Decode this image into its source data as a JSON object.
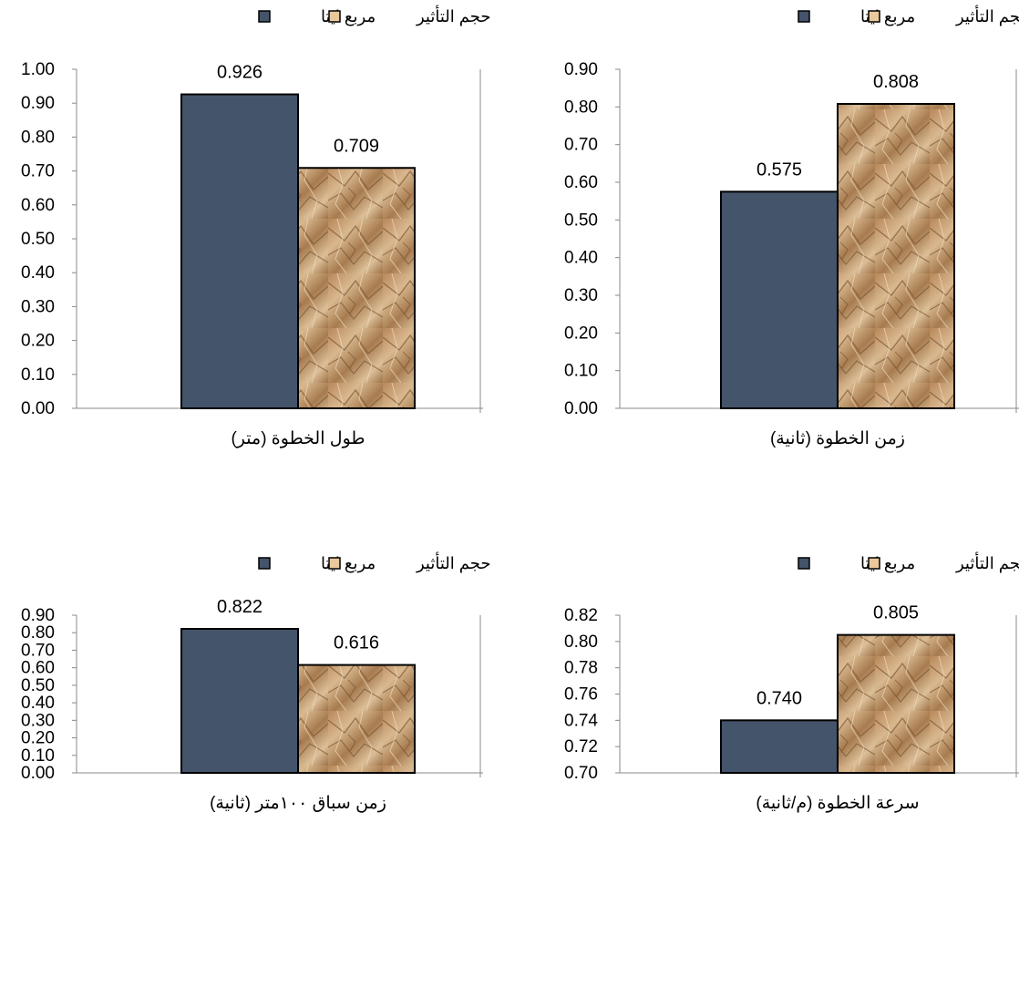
{
  "chart_data": [
    {
      "type": "bar",
      "categories": [
        "طول الخطوة (متر)"
      ],
      "series": [
        {
          "name": "مربع ايتا",
          "values": [
            0.926
          ],
          "color": "#44546a"
        },
        {
          "name": "حجم التأثير",
          "values": [
            0.709
          ],
          "color": "#c9a273"
        }
      ],
      "data_labels": [
        "0.926",
        "0.709"
      ],
      "ylim": [
        0,
        1.0
      ],
      "yticks": [
        "0.00",
        "0.10",
        "0.20",
        "0.30",
        "0.40",
        "0.50",
        "0.60",
        "0.70",
        "0.80",
        "0.90",
        "1.00"
      ],
      "legend_position": "top",
      "grid": false
    },
    {
      "type": "bar",
      "categories": [
        "زمن الخطوة (ثانية)"
      ],
      "series": [
        {
          "name": "مربع ايتا",
          "values": [
            0.575
          ],
          "color": "#44546a"
        },
        {
          "name": "حجم التأثير",
          "values": [
            0.808
          ],
          "color": "#c9a273"
        }
      ],
      "data_labels": [
        "0.575",
        "0.808"
      ],
      "ylim": [
        0,
        0.9
      ],
      "yticks": [
        "0.00",
        "0.10",
        "0.20",
        "0.30",
        "0.40",
        "0.50",
        "0.60",
        "0.70",
        "0.80",
        "0.90"
      ],
      "legend_position": "top",
      "grid": false
    },
    {
      "type": "bar",
      "categories": [
        "زمن سباق ١٠٠متر (ثانية)"
      ],
      "series": [
        {
          "name": "مربع ايتا",
          "values": [
            0.822
          ],
          "color": "#44546a"
        },
        {
          "name": "حجم التأثير",
          "values": [
            0.616
          ],
          "color": "#c9a273"
        }
      ],
      "data_labels": [
        "0.822",
        "0.616"
      ],
      "ylim": [
        0,
        0.9
      ],
      "yticks": [
        "0.00",
        "0.10",
        "0.20",
        "0.30",
        "0.40",
        "0.50",
        "0.60",
        "0.70",
        "0.80",
        "0.90"
      ],
      "legend_position": "top",
      "grid": false
    },
    {
      "type": "bar",
      "categories": [
        "سرعة الخطوة (م/ثانية)"
      ],
      "series": [
        {
          "name": "مربع ايتا",
          "values": [
            0.74
          ],
          "color": "#44546a"
        },
        {
          "name": "حجم التأثير",
          "values": [
            0.805
          ],
          "color": "#c9a273"
        }
      ],
      "data_labels": [
        "0.740",
        "0.805"
      ],
      "ylim": [
        0.7,
        0.82
      ],
      "yticks": [
        "0.70",
        "0.72",
        "0.74",
        "0.76",
        "0.78",
        "0.80",
        "0.82"
      ],
      "legend_position": "top",
      "grid": false
    }
  ]
}
